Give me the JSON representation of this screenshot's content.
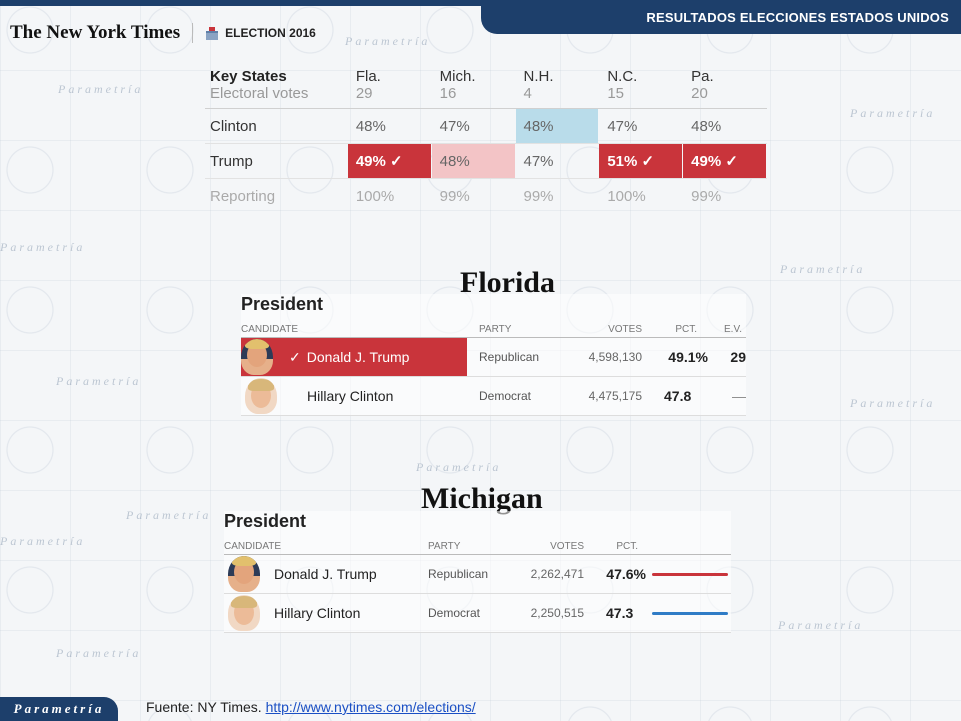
{
  "header": {
    "title": "RESULTADOS ELECCIONES ESTADOS UNIDOS"
  },
  "brand": {
    "logo_text": "The New York Times",
    "election_label": "ELECTION 2016"
  },
  "watermark": "Parametría",
  "key_states": {
    "title": "Key States",
    "subtitle": "Electoral votes",
    "states": [
      {
        "name": "Fla.",
        "ev": "29"
      },
      {
        "name": "Mich.",
        "ev": "16"
      },
      {
        "name": "N.H.",
        "ev": "4"
      },
      {
        "name": "N.C.",
        "ev": "15"
      },
      {
        "name": "Pa.",
        "ev": "20"
      }
    ],
    "rows": [
      {
        "label": "Clinton",
        "values": [
          "48%",
          "47%",
          "48%",
          "47%",
          "48%"
        ]
      },
      {
        "label": "Trump",
        "values": [
          "49% ✓",
          "48%",
          "47%",
          "51% ✓",
          "49% ✓"
        ]
      },
      {
        "label": "Reporting",
        "values": [
          "100%",
          "99%",
          "99%",
          "100%",
          "99%"
        ]
      }
    ],
    "colors": {
      "republican_win": "#c9343b",
      "republican_lean": "#f3c4c6",
      "democrat_lean": "#b9dcea"
    }
  },
  "florida": {
    "state": "Florida",
    "office": "President",
    "columns": {
      "candidate": "CANDIDATE",
      "party": "PARTY",
      "votes": "VOTES",
      "pct": "PCT.",
      "ev": "E.V."
    },
    "candidates": [
      {
        "check": "✓",
        "name": "Donald J. Trump",
        "party": "Republican",
        "votes": "4,598,130",
        "pct": "49.1%",
        "ev": "29"
      },
      {
        "name": "Hillary Clinton",
        "party": "Democrat",
        "votes": "4,475,175",
        "pct": "47.8",
        "ev": "—"
      }
    ]
  },
  "michigan": {
    "state": "Michigan",
    "office": "President",
    "columns": {
      "candidate": "CANDIDATE",
      "party": "PARTY",
      "votes": "VOTES",
      "pct": "PCT."
    },
    "candidates": [
      {
        "name": "Donald J. Trump",
        "party": "Republican",
        "votes": "2,262,471",
        "pct": "47.6%"
      },
      {
        "name": "Hillary Clinton",
        "party": "Democrat",
        "votes": "2,250,515",
        "pct": "47.3"
      }
    ],
    "bar_colors": {
      "republican": "#c9343b",
      "democrat": "#2f7cc6"
    }
  },
  "footer": {
    "logo_text": "Parametría",
    "source_prefix": "Fuente: NY Times.",
    "source_link": "http://www.nytimes.com/elections/"
  }
}
